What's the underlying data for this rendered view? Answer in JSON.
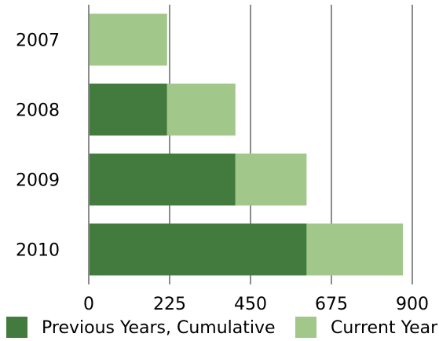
{
  "chart_data": {
    "type": "bar",
    "orientation": "horizontal",
    "stacked": true,
    "categories": [
      "2007",
      "2008",
      "2009",
      "2010"
    ],
    "series": [
      {
        "name": "Previous Years, Cumulative",
        "values": [
          0,
          218,
          408,
          606
        ],
        "color": "#437a3e"
      },
      {
        "name": "Current Year",
        "values": [
          218,
          190,
          198,
          268
        ],
        "color": "#a2c78b"
      }
    ],
    "x_ticks": [
      "0",
      "225",
      "450",
      "675",
      "900"
    ],
    "xlim": [
      0,
      900
    ],
    "grid": true,
    "legend_position": "bottom"
  }
}
